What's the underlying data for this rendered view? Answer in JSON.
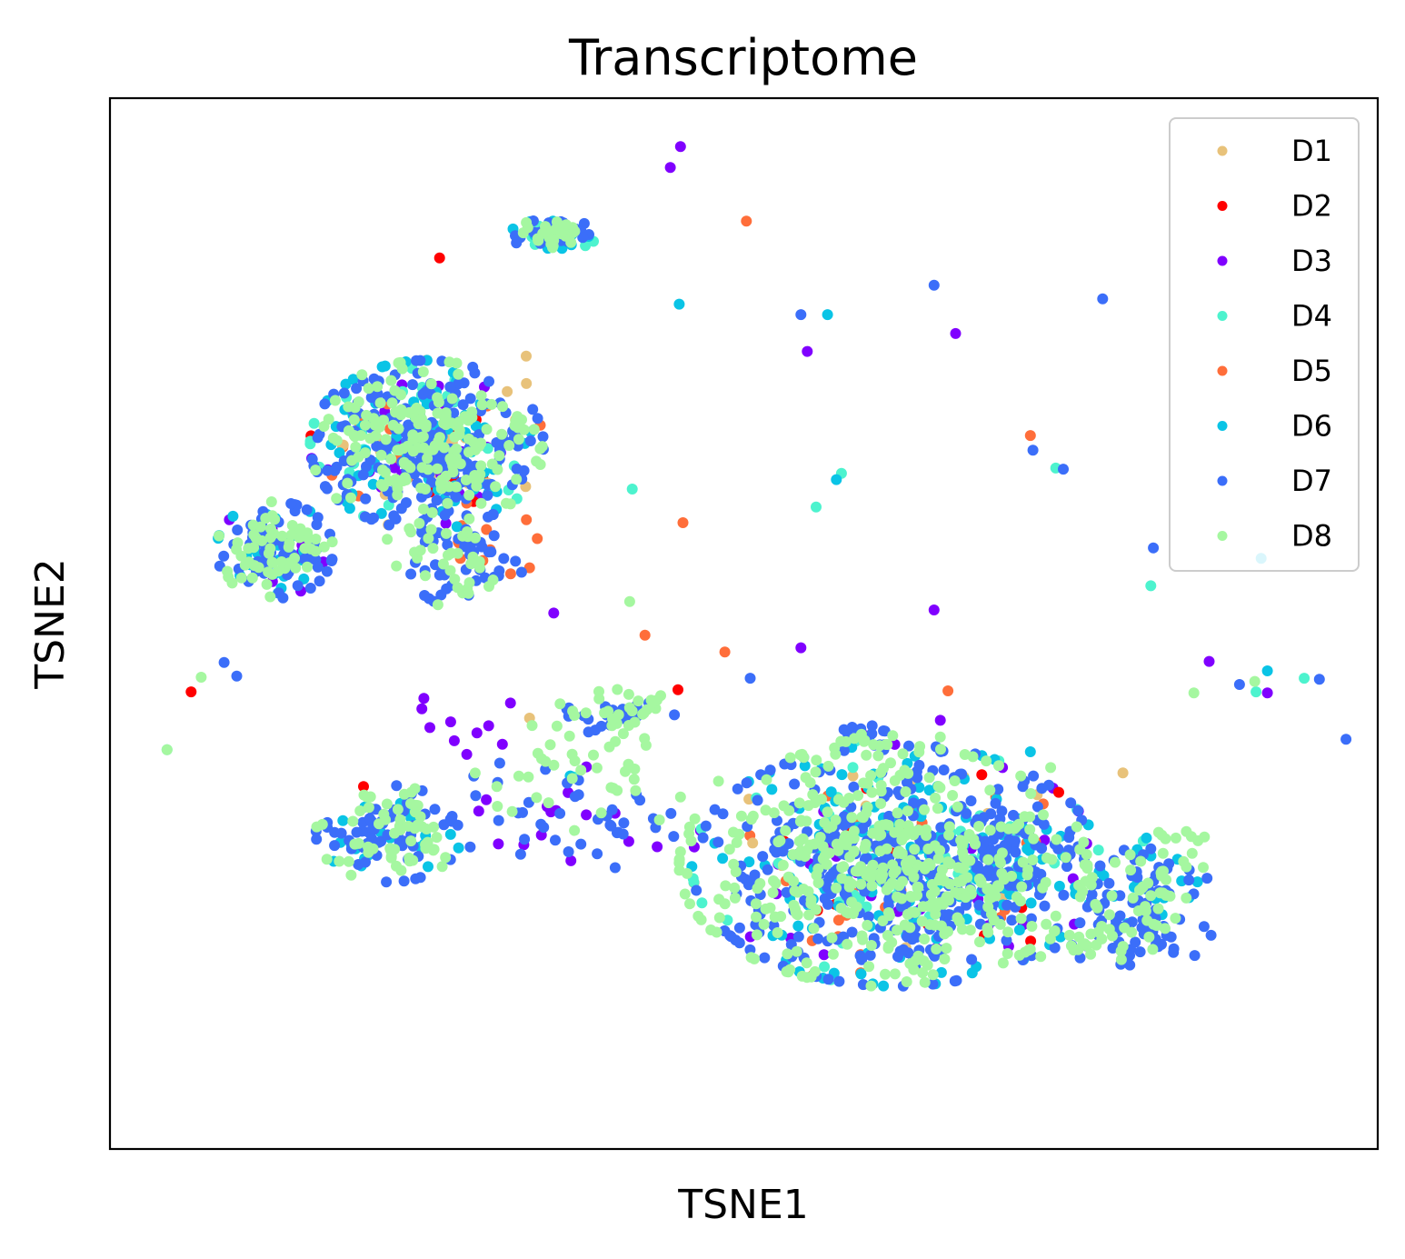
{
  "chart_data": {
    "type": "scatter",
    "title": "Transcriptome",
    "xlabel": "TSNE1",
    "ylabel": "TSNE2",
    "xlim": [
      0,
      100
    ],
    "ylim": [
      0,
      100
    ],
    "ticks_shown": false,
    "grid": false,
    "legend_position": "top-right",
    "draw_order": [
      "D3",
      "D2",
      "D5",
      "D1",
      "D4",
      "D6",
      "D7",
      "D8"
    ],
    "series": [
      {
        "name": "D1",
        "color": "#e8c27a",
        "clusters": [
          [
            25,
            67,
            8,
            7,
            15
          ],
          [
            62,
            27,
            14,
            10,
            12
          ],
          [
            33,
            72,
            3,
            3,
            4
          ]
        ],
        "points": [
          [
            33.1,
            41.0
          ],
          [
            79.9,
            35.8
          ],
          [
            50.4,
            33.3
          ],
          [
            58.6,
            35.5
          ]
        ]
      },
      {
        "name": "D2",
        "color": "#ff0000",
        "clusters": [
          [
            25,
            67,
            8,
            7,
            8
          ],
          [
            62,
            27,
            14,
            10,
            10
          ],
          [
            65,
            23,
            8,
            5,
            6
          ]
        ],
        "points": [
          [
            6.4,
            43.5
          ],
          [
            26.0,
            84.8
          ],
          [
            44.8,
            43.7
          ],
          [
            20.0,
            34.5
          ]
        ]
      },
      {
        "name": "D3",
        "color": "#8000ff",
        "clusters": [
          [
            25,
            67,
            8,
            7,
            30
          ],
          [
            13,
            57,
            4,
            4,
            12
          ],
          [
            62,
            27,
            14,
            10,
            40
          ],
          [
            28,
            40,
            5,
            4,
            10
          ],
          [
            35,
            32,
            10,
            4,
            15
          ]
        ],
        "points": [
          [
            45.0,
            95.4
          ],
          [
            44.2,
            93.4
          ],
          [
            66.7,
            77.6
          ],
          [
            55.0,
            75.9
          ],
          [
            35.0,
            51.0
          ],
          [
            65.0,
            51.3
          ],
          [
            54.5,
            47.7
          ],
          [
            86.7,
            46.4
          ],
          [
            65.5,
            40.8
          ],
          [
            70.4,
            36.3
          ],
          [
            91.3,
            43.4
          ],
          [
            59.3,
            39.6
          ]
        ]
      },
      {
        "name": "D4",
        "color": "#4df3ce",
        "clusters": [
          [
            25,
            67,
            8,
            7,
            40
          ],
          [
            35,
            87,
            3,
            1.3,
            12
          ],
          [
            62,
            27,
            14,
            10,
            50
          ],
          [
            67,
            27,
            6,
            5,
            30
          ]
        ],
        "points": [
          [
            4.5,
            38.0
          ],
          [
            41.2,
            62.8
          ],
          [
            57.7,
            64.3
          ],
          [
            74.6,
            64.8
          ],
          [
            55.7,
            61.1
          ],
          [
            36.6,
            35.4
          ],
          [
            58.8,
            38.8
          ],
          [
            90.4,
            43.5
          ],
          [
            94.2,
            44.8
          ],
          [
            82.1,
            53.6
          ],
          [
            81.5,
            29.3
          ]
        ]
      },
      {
        "name": "D5",
        "color": "#ff6e3a",
        "clusters": [
          [
            25,
            67,
            8,
            7,
            20
          ],
          [
            62,
            27,
            14,
            10,
            30
          ],
          [
            30,
            57,
            4,
            4,
            10
          ]
        ],
        "points": [
          [
            50.2,
            88.3
          ],
          [
            72.6,
            67.9
          ],
          [
            42.2,
            48.9
          ],
          [
            48.5,
            47.3
          ],
          [
            66.1,
            43.6
          ],
          [
            45.2,
            59.6
          ]
        ]
      },
      {
        "name": "D6",
        "color": "#0ac4e6",
        "clusters": [
          [
            25,
            67,
            8,
            7,
            90
          ],
          [
            35,
            87,
            3,
            1.3,
            25
          ],
          [
            13,
            57,
            4,
            4,
            25
          ],
          [
            22,
            30,
            5,
            4,
            20
          ],
          [
            62,
            27,
            14,
            10,
            130
          ],
          [
            70,
            27,
            6,
            4,
            40
          ],
          [
            82,
            25,
            4,
            4,
            20
          ]
        ],
        "points": [
          [
            44.9,
            80.4
          ],
          [
            56.6,
            79.4
          ],
          [
            57.3,
            63.7
          ],
          [
            90.8,
            56.2
          ],
          [
            91.3,
            45.5
          ],
          [
            72.6,
            37.8
          ],
          [
            36.3,
            35.5
          ],
          [
            63.5,
            37.4
          ]
        ]
      },
      {
        "name": "D7",
        "color": "#3b6ef9",
        "clusters": [
          [
            25,
            67,
            8,
            7,
            220
          ],
          [
            35,
            87,
            3,
            1.3,
            30
          ],
          [
            13,
            57,
            4,
            4,
            70
          ],
          [
            28,
            56,
            4,
            4,
            50
          ],
          [
            22,
            30,
            5,
            4,
            60
          ],
          [
            36,
            32,
            8,
            5,
            40
          ],
          [
            62,
            27,
            14,
            10,
            330
          ],
          [
            70,
            27,
            6,
            4,
            70
          ],
          [
            82,
            25,
            4,
            4,
            40
          ],
          [
            80,
            20,
            6,
            2.5,
            40
          ],
          [
            40,
            41,
            4,
            1.5,
            25
          ],
          [
            59,
            40,
            2.5,
            1,
            10
          ]
        ],
        "points": [
          [
            9.0,
            46.3
          ],
          [
            10.0,
            45.0
          ],
          [
            54.5,
            79.4
          ],
          [
            65.0,
            82.2
          ],
          [
            72.8,
            66.5
          ],
          [
            75.2,
            64.7
          ],
          [
            82.3,
            57.2
          ],
          [
            78.3,
            80.9
          ],
          [
            97.5,
            39.0
          ],
          [
            89.1,
            44.2
          ],
          [
            95.4,
            44.7
          ],
          [
            81.5,
            28.0
          ],
          [
            50.5,
            44.8
          ]
        ]
      },
      {
        "name": "D8",
        "color": "#a5f7a0",
        "clusters": [
          [
            25,
            67,
            8,
            7,
            180
          ],
          [
            35,
            87,
            3,
            1.3,
            30
          ],
          [
            13,
            57,
            4,
            4,
            60
          ],
          [
            26,
            56,
            4,
            4,
            35
          ],
          [
            22,
            30,
            5,
            4,
            60
          ],
          [
            38,
            36,
            8,
            5,
            40
          ],
          [
            61,
            27,
            14,
            10,
            400
          ],
          [
            67,
            25,
            6,
            4,
            50
          ],
          [
            82,
            25,
            4,
            4,
            40
          ],
          [
            79,
            20,
            6,
            2.5,
            30
          ],
          [
            40,
            42,
            4,
            1.5,
            25
          ],
          [
            59,
            39,
            2.5,
            1,
            8
          ],
          [
            83,
            30,
            3,
            1,
            8
          ]
        ],
        "points": [
          [
            4.5,
            38.0
          ],
          [
            7.2,
            44.9
          ],
          [
            41.0,
            52.1
          ],
          [
            90.3,
            44.5
          ],
          [
            74.2,
            36.3
          ],
          [
            65.5,
            39.2
          ],
          [
            85.5,
            43.4
          ],
          [
            45.0,
            33.5
          ],
          [
            48.0,
            35.0
          ]
        ]
      }
    ]
  }
}
